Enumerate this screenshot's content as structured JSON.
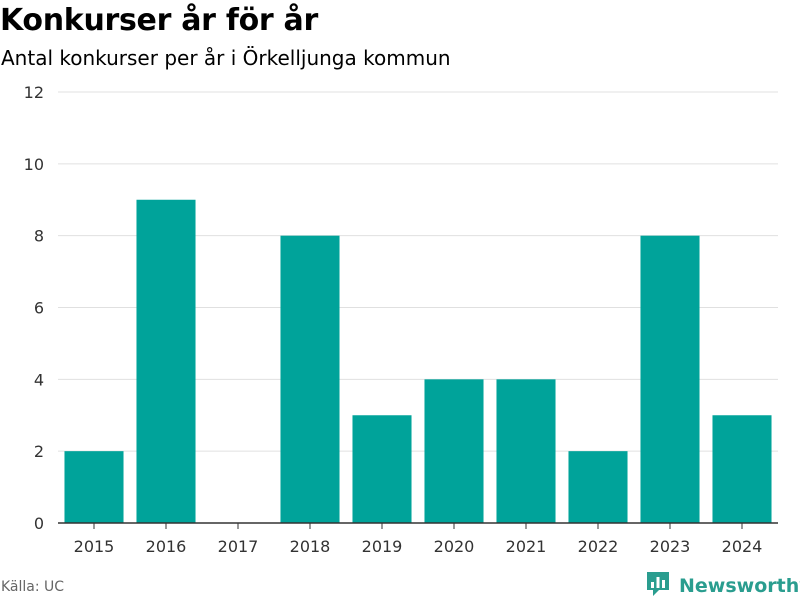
{
  "header": {
    "title": "Konkurser år för år",
    "subtitle": "Antal konkurser per år i Örkelljunga kommun"
  },
  "footer": {
    "source": "Källa: UC",
    "brand": "Newsworthy"
  },
  "colors": {
    "bar": "#00a39a",
    "grid": "#e0e0e0",
    "axis": "#333333",
    "brand": "#2a9d8f"
  },
  "chart_data": {
    "type": "bar",
    "title": "Konkurser år för år",
    "subtitle": "Antal konkurser per år i Örkelljunga kommun",
    "xlabel": "",
    "ylabel": "",
    "categories": [
      "2015",
      "2016",
      "2017",
      "2018",
      "2019",
      "2020",
      "2021",
      "2022",
      "2023",
      "2024"
    ],
    "values": [
      2,
      9,
      0,
      8,
      3,
      4,
      4,
      2,
      8,
      3
    ],
    "ylim": [
      0,
      12
    ],
    "yticks": [
      0,
      2,
      4,
      6,
      8,
      10,
      12
    ],
    "grid": true,
    "legend": "none"
  }
}
